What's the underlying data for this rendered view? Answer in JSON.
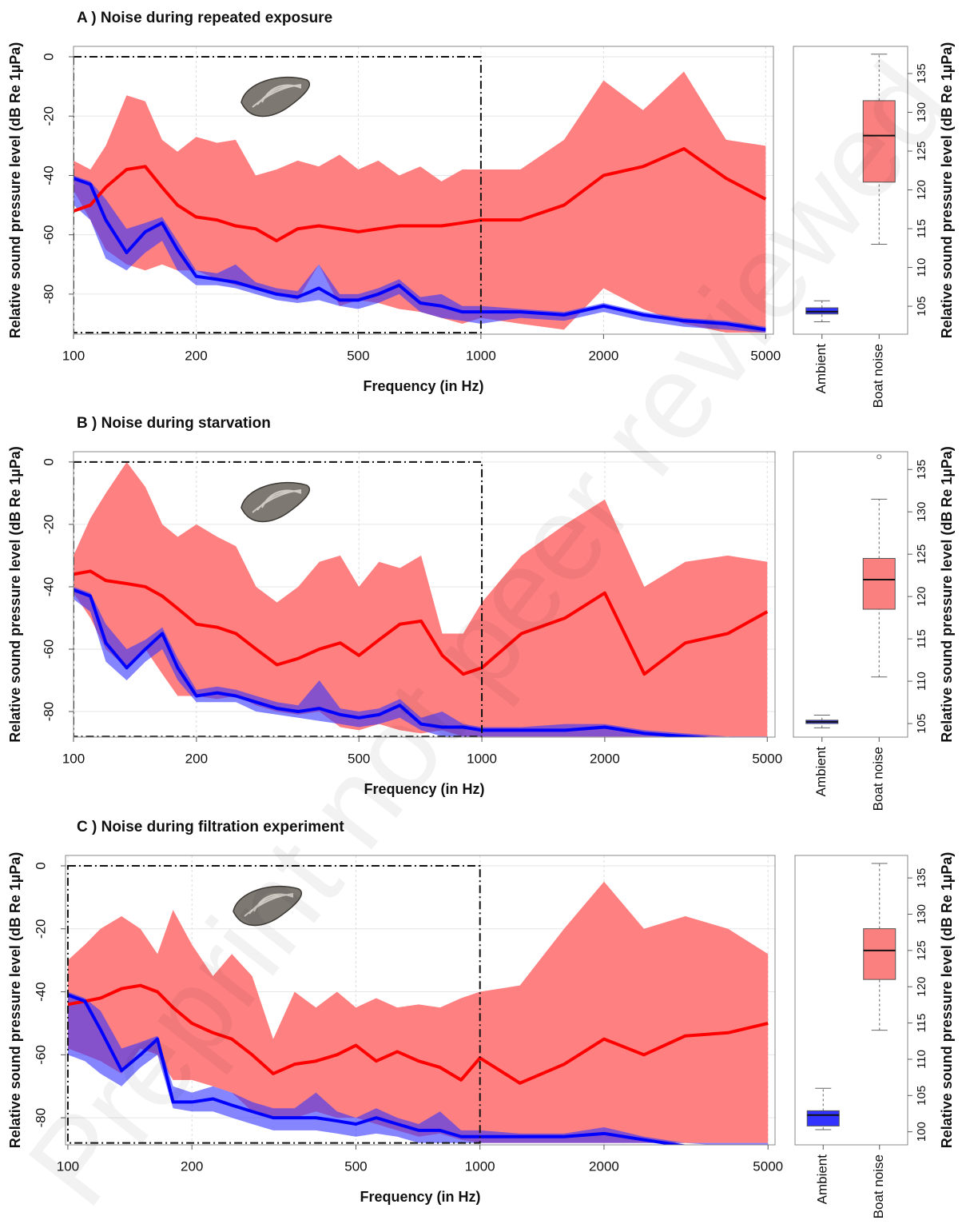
{
  "watermark": "Preprint not peer reviewed",
  "chart_data": [
    {
      "type": "spectrum",
      "title": "A ) Noise during repeated exposure",
      "x_label": "Frequency (in Hz)",
      "y_label": "Relative sound pressure level (dB Re 1µPa)",
      "xscale": "log",
      "xlim": [
        100,
        5224
      ],
      "xticks": [
        100,
        200,
        500,
        1000,
        2000,
        5000
      ],
      "ylim": [
        -93.5,
        3.5
      ],
      "yticks": [
        0,
        -20,
        -40,
        -60,
        -80
      ],
      "grid": true,
      "x": [
        100,
        110,
        120,
        135,
        150,
        165,
        180,
        200,
        225,
        250,
        280,
        315,
        355,
        400,
        450,
        500,
        560,
        630,
        710,
        800,
        900,
        1000,
        1250,
        1600,
        2000,
        2500,
        3150,
        4000,
        5000
      ],
      "series": [
        {
          "color": "#ff0000",
          "band_color": "#ff8080",
          "values": [
            -52,
            -50,
            -44,
            -38,
            -37,
            -44,
            -50,
            -54,
            -55,
            -57,
            -58,
            -62,
            -58,
            -57,
            -58,
            -59,
            -58,
            -57,
            -57,
            -57,
            -56,
            -55,
            -55,
            -50,
            -40,
            -37,
            -31,
            -41,
            -48
          ],
          "band_high": [
            -35,
            -38,
            -30,
            -13,
            -15,
            -28,
            -32,
            -27,
            -29,
            -28,
            -40,
            -38,
            -35,
            -37,
            -33,
            -38,
            -35,
            -40,
            -37,
            -42,
            -38,
            -38,
            -38,
            -28,
            -8,
            -18,
            -5,
            -28,
            -30
          ],
          "band_low": [
            -45,
            -55,
            -65,
            -70,
            -72,
            -70,
            -72,
            -72,
            -75,
            -77,
            -78,
            -80,
            -82,
            -70,
            -84,
            -82,
            -83,
            -85,
            -86,
            -88,
            -90,
            -88,
            -90,
            -92,
            -78,
            -85,
            -90,
            -93,
            -93
          ]
        },
        {
          "color": "#0000ff",
          "band_color": "#3333ff",
          "values": [
            -41,
            -43,
            -55,
            -66,
            -59,
            -56,
            -65,
            -74,
            -75,
            -76,
            -78,
            -80,
            -81,
            -78,
            -82,
            -82,
            -80,
            -77,
            -83,
            -84,
            -86,
            -86,
            -86,
            -87,
            -84,
            -87,
            -89,
            -90,
            -92
          ],
          "band_high": [
            -40,
            -42,
            -48,
            -58,
            -56,
            -54,
            -62,
            -72,
            -73,
            -70,
            -76,
            -78,
            -79,
            -70,
            -80,
            -80,
            -78,
            -75,
            -81,
            -80,
            -84,
            -84,
            -85,
            -86,
            -83,
            -86,
            -88,
            -89,
            -91
          ],
          "band_low": [
            -50,
            -55,
            -68,
            -72,
            -66,
            -62,
            -72,
            -77,
            -77,
            -78,
            -80,
            -82,
            -83,
            -82,
            -84,
            -85,
            -83,
            -80,
            -86,
            -88,
            -89,
            -90,
            -88,
            -89,
            -86,
            -89,
            -91,
            -92,
            -93
          ]
        }
      ],
      "highlight_box": {
        "xlim": [
          100,
          1000
        ],
        "ylim": [
          -93,
          0
        ]
      }
    },
    {
      "type": "box",
      "y_label": "Relative sound pressure level (dB Re 1µPa)",
      "axis_side": "right",
      "categories": [
        "Ambient",
        "Boat noise"
      ],
      "ylim": [
        101.4,
        138.5
      ],
      "yticks": [
        105,
        110,
        115,
        120,
        125,
        130,
        135
      ],
      "boxes": [
        {
          "color": "#3333ff",
          "whisker_low": 103,
          "q1": 104,
          "median": 104.3,
          "q3": 104.8,
          "whisker_high": 105.7,
          "outliers": []
        },
        {
          "color": "#fa8080",
          "whisker_low": 113,
          "q1": 121,
          "median": 127,
          "q3": 131.5,
          "whisker_high": 137.5,
          "outliers": []
        }
      ]
    },
    {
      "type": "spectrum",
      "title": "B ) Noise during starvation",
      "x_label": "Frequency (in Hz)",
      "y_label": "Relative sound pressure level (dB Re 1µPa)",
      "xscale": "log",
      "xlim": [
        100,
        5224
      ],
      "xticks": [
        100,
        200,
        500,
        1000,
        2000,
        5000
      ],
      "ylim": [
        -88.2,
        3.3
      ],
      "yticks": [
        0,
        -20,
        -40,
        -60,
        -80
      ],
      "grid": true,
      "x": [
        100,
        110,
        120,
        135,
        150,
        165,
        180,
        200,
        225,
        250,
        280,
        315,
        355,
        400,
        450,
        500,
        560,
        630,
        710,
        800,
        900,
        1000,
        1250,
        1600,
        2000,
        2500,
        3150,
        4000,
        5000
      ],
      "series": [
        {
          "color": "#ff0000",
          "band_color": "#ff8080",
          "values": [
            -36,
            -35,
            -38,
            -39,
            -40,
            -43,
            -47,
            -52,
            -53,
            -55,
            -60,
            -65,
            -63,
            -60,
            -58,
            -62,
            -57,
            -52,
            -51,
            -62,
            -68,
            -66,
            -55,
            -50,
            -42,
            -68,
            -58,
            -55,
            -48
          ],
          "band_high": [
            -30,
            -18,
            -10,
            0,
            -8,
            -20,
            -24,
            -20,
            -24,
            -27,
            -40,
            -45,
            -40,
            -32,
            -30,
            -40,
            -32,
            -34,
            -30,
            -55,
            -55,
            -45,
            -30,
            -20,
            -12,
            -40,
            -32,
            -30,
            -32
          ],
          "band_low": [
            -42,
            -50,
            -60,
            -66,
            -60,
            -68,
            -75,
            -75,
            -76,
            -75,
            -78,
            -80,
            -81,
            -80,
            -85,
            -86,
            -84,
            -86,
            -87,
            -86,
            -88,
            -88,
            -88,
            -88,
            -88,
            -88,
            -88,
            -88,
            -88
          ]
        },
        {
          "color": "#0000ff",
          "band_color": "#3333ff",
          "values": [
            -41,
            -43,
            -58,
            -66,
            -60,
            -55,
            -66,
            -75,
            -74,
            -75,
            -77,
            -79,
            -80,
            -79,
            -81,
            -82,
            -81,
            -78,
            -84,
            -85,
            -85,
            -86,
            -86,
            -86,
            -85,
            -87,
            -88,
            -89,
            -90
          ],
          "band_high": [
            -40,
            -42,
            -52,
            -60,
            -57,
            -53,
            -63,
            -73,
            -72,
            -73,
            -75,
            -77,
            -78,
            -70,
            -79,
            -80,
            -79,
            -76,
            -82,
            -80,
            -84,
            -85,
            -85,
            -84,
            -84,
            -86,
            -87,
            -88,
            -89
          ],
          "band_low": [
            -44,
            -48,
            -64,
            -70,
            -64,
            -60,
            -70,
            -77,
            -77,
            -77,
            -80,
            -81,
            -82,
            -83,
            -84,
            -85,
            -84,
            -82,
            -86,
            -88,
            -88,
            -88,
            -88,
            -88,
            -88,
            -88,
            -88,
            -88,
            -88
          ]
        }
      ],
      "highlight_box": {
        "xlim": [
          100,
          1000
        ],
        "ylim": [
          -88,
          0
        ]
      }
    },
    {
      "type": "box",
      "y_label": "Relative sound pressure level (dB Re 1µPa)",
      "axis_side": "right",
      "categories": [
        "Ambient",
        "Boat noise"
      ],
      "ylim": [
        103.4,
        137.1
      ],
      "yticks": [
        105,
        110,
        115,
        120,
        125,
        130,
        135
      ],
      "boxes": [
        {
          "color": "#3333ff",
          "whisker_low": 104.5,
          "q1": 105,
          "median": 105.2,
          "q3": 105.4,
          "whisker_high": 106,
          "outliers": []
        },
        {
          "color": "#fa8080",
          "whisker_low": 110.5,
          "q1": 118.5,
          "median": 122,
          "q3": 124.5,
          "whisker_high": 131.5,
          "outliers": [
            136.5
          ]
        }
      ]
    },
    {
      "type": "spectrum",
      "title": "C ) Noise during filtration experiment",
      "x_label": "Frequency (in Hz)",
      "y_label": "Relative sound pressure level (dB Re 1µPa)",
      "xscale": "log",
      "xlim": [
        98.7,
        5200
      ],
      "xticks": [
        100,
        200,
        500,
        1000,
        2000,
        5000
      ],
      "ylim": [
        -88.6,
        3.3
      ],
      "yticks": [
        0,
        -20,
        -40,
        -60,
        -80
      ],
      "grid": true,
      "x": [
        100,
        110,
        120,
        135,
        150,
        165,
        180,
        200,
        225,
        250,
        280,
        315,
        355,
        400,
        450,
        500,
        560,
        630,
        710,
        800,
        900,
        1000,
        1250,
        1600,
        2000,
        2500,
        3150,
        4000,
        5000
      ],
      "series": [
        {
          "color": "#ff0000",
          "band_color": "#ff8080",
          "values": [
            -44,
            -43,
            -42,
            -39,
            -38,
            -40,
            -45,
            -50,
            -53,
            -55,
            -60,
            -66,
            -63,
            -62,
            -60,
            -57,
            -62,
            -59,
            -62,
            -64,
            -68,
            -61,
            -69,
            -63,
            -55,
            -60,
            -54,
            -53,
            -50
          ],
          "band_high": [
            -30,
            -25,
            -20,
            -16,
            -20,
            -28,
            -14,
            -25,
            -35,
            -28,
            -35,
            -55,
            -40,
            -45,
            -40,
            -45,
            -42,
            -45,
            -44,
            -45,
            -42,
            -40,
            -38,
            -20,
            -5,
            -20,
            -16,
            -20,
            -28
          ],
          "band_low": [
            -58,
            -60,
            -62,
            -66,
            -58,
            -60,
            -68,
            -68,
            -70,
            -72,
            -78,
            -80,
            -80,
            -78,
            -80,
            -80,
            -82,
            -84,
            -86,
            -85,
            -87,
            -88,
            -88,
            -88,
            -88,
            -88,
            -88,
            -88,
            -88
          ]
        },
        {
          "color": "#0000ff",
          "band_color": "#3333ff",
          "values": [
            -41,
            -43,
            -52,
            -65,
            -60,
            -55,
            -75,
            -75,
            -74,
            -76,
            -78,
            -80,
            -80,
            -80,
            -81,
            -82,
            -80,
            -82,
            -84,
            -84,
            -86,
            -86,
            -86,
            -86,
            -85,
            -87,
            -89,
            -90,
            -91
          ],
          "band_high": [
            -40,
            -42,
            -46,
            -58,
            -56,
            -54,
            -70,
            -72,
            -70,
            -72,
            -75,
            -77,
            -77,
            -72,
            -78,
            -80,
            -77,
            -80,
            -82,
            -78,
            -84,
            -84,
            -85,
            -85,
            -83,
            -86,
            -88,
            -89,
            -90
          ],
          "band_low": [
            -60,
            -62,
            -66,
            -70,
            -64,
            -60,
            -77,
            -78,
            -78,
            -80,
            -82,
            -84,
            -84,
            -84,
            -85,
            -86,
            -85,
            -86,
            -88,
            -88,
            -88,
            -88,
            -88,
            -88,
            -88,
            -88,
            -88,
            -88,
            -88
          ]
        }
      ],
      "highlight_box": {
        "xlim": [
          100,
          1000
        ],
        "ylim": [
          -88,
          0
        ]
      }
    },
    {
      "type": "box",
      "y_label": "Relative sound pressure level (dB Re 1µPa)",
      "axis_side": "right",
      "categories": [
        "Ambient",
        "Boat noise"
      ],
      "ylim": [
        98.2,
        138.1
      ],
      "yticks": [
        100,
        105,
        110,
        115,
        120,
        125,
        130,
        135
      ],
      "boxes": [
        {
          "color": "#3333ff",
          "whisker_low": 100.3,
          "q1": 100.8,
          "median": 102.3,
          "q3": 102.9,
          "whisker_high": 106,
          "outliers": []
        },
        {
          "color": "#fa8080",
          "whisker_low": 114,
          "q1": 121,
          "median": 125,
          "q3": 128,
          "whisker_high": 137,
          "outliers": []
        }
      ]
    }
  ]
}
